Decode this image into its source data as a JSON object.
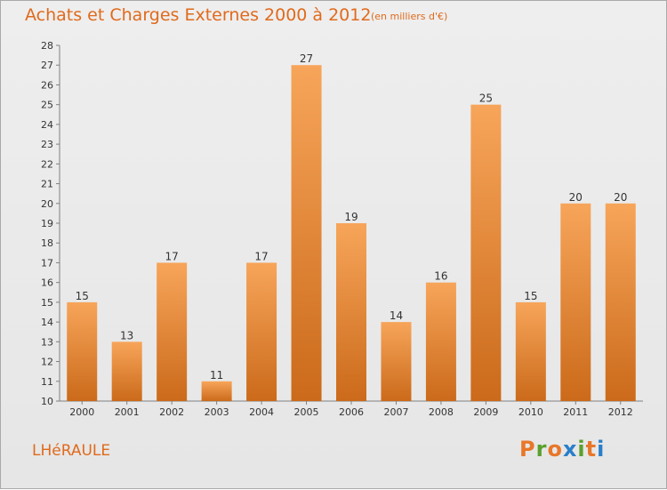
{
  "header": {
    "title": "Achats et Charges Externes 2000 à 2012",
    "subtitle": "(en milliers d'€)"
  },
  "footer": {
    "commune": "LHéRAULE",
    "brand_letters": [
      "P",
      "r",
      "o",
      "x",
      "i",
      "t",
      "i"
    ],
    "brand_colors": [
      "#e8772a",
      "#5aa02c",
      "#e8772a",
      "#2a7fc9",
      "#5aa02c",
      "#e8772a",
      "#2a7fc9"
    ]
  },
  "colors": {
    "bar_top": "#f7a55a",
    "bar_bottom": "#cb6a1a",
    "accent": "#e06a1c"
  },
  "chart_data": {
    "type": "bar",
    "categories": [
      "2000",
      "2001",
      "2002",
      "2003",
      "2004",
      "2005",
      "2006",
      "2007",
      "2008",
      "2009",
      "2010",
      "2011",
      "2012"
    ],
    "values": [
      15,
      13,
      17,
      11,
      17,
      27,
      19,
      14,
      16,
      25,
      15,
      20,
      20
    ],
    "ylim": [
      10,
      28
    ],
    "yticks": [
      10,
      11,
      12,
      13,
      14,
      15,
      16,
      17,
      18,
      19,
      20,
      21,
      22,
      23,
      24,
      25,
      26,
      27,
      28
    ],
    "grid": false,
    "data_labels": true
  }
}
